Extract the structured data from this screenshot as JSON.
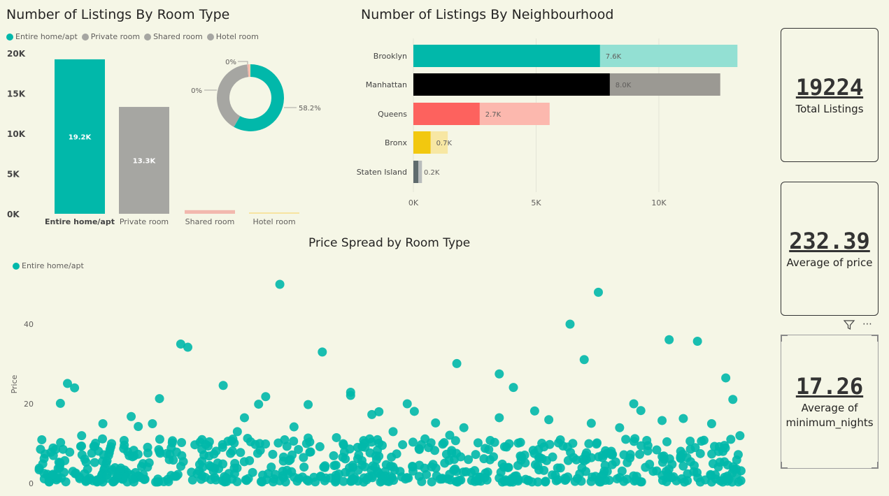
{
  "room_chart": {
    "title": "Number of Listings By Room Type",
    "legend": [
      {
        "name": "Entire home/apt",
        "color": "#01b8aa"
      },
      {
        "name": "Private room",
        "color": "#a6a6a2"
      },
      {
        "name": "Shared room",
        "color": "#a6a6a2"
      },
      {
        "name": "Hotel room",
        "color": "#a6a6a2"
      }
    ],
    "y_ticks": [
      "20K",
      "15K",
      "10K",
      "5K",
      "0K"
    ],
    "donut_labels": {
      "top": "0%",
      "left": "0%",
      "right": "58.2%"
    }
  },
  "neigh_chart": {
    "title": "Number of Listings By Neighbourhood",
    "x_ticks": [
      "0K",
      "5K",
      "10K"
    ]
  },
  "scatter_chart": {
    "title": "Price Spread by Room Type",
    "legend": [
      {
        "name": "Entire home/apt",
        "color": "#01b8aa"
      }
    ],
    "ylabel": "Price",
    "y_ticks": [
      "40",
      "20",
      "0"
    ]
  },
  "cards": [
    {
      "value": "19224",
      "label": "Total Listings"
    },
    {
      "value": "232.39",
      "label": "Average of price"
    },
    {
      "value": "17.26",
      "label_line1": "Average of",
      "label_line2": "minimum_nights"
    }
  ],
  "toolbar": {
    "filter_icon": "filter-icon",
    "more_icon": "more-options-icon",
    "more_label": "⋯"
  },
  "chart_data": [
    {
      "type": "bar",
      "categories": [
        "Entire home/apt",
        "Private room",
        "Shared room",
        "Hotel room"
      ],
      "values": [
        19224,
        13300,
        450,
        150
      ],
      "data_labels": [
        "19.2K",
        "13.3K",
        "",
        ""
      ],
      "colors": [
        "#01b8aa",
        "#a6a6a2",
        "#f2b8ae",
        "#f7e4a0"
      ],
      "ylim": [
        0,
        20000
      ],
      "legend": "top-left"
    },
    {
      "type": "pie",
      "categories": [
        "Entire home/apt",
        "Private room",
        "Shared room",
        "Hotel room"
      ],
      "values": [
        58.2,
        40.3,
        1.2,
        0.3
      ],
      "colors": [
        "#01b8aa",
        "#a6a6a2",
        "#f2b8ae",
        "#f7e4a0"
      ]
    },
    {
      "type": "bar",
      "orientation": "horizontal",
      "categories": [
        "Brooklyn",
        "Manhattan",
        "Queens",
        "Bronx",
        "Staten Island"
      ],
      "values": [
        7600,
        8000,
        2700,
        700,
        200
      ],
      "totals": [
        13200,
        12500,
        5550,
        1400,
        350
      ],
      "data_labels": [
        "7.6K",
        "8.0K",
        "2.7K",
        "0.7K",
        "0.2K"
      ],
      "colors": [
        "#01b8aa",
        "#000000",
        "#fd625e",
        "#f2c80f",
        "#5f6b6d"
      ],
      "light_colors": [
        "#93e0d3",
        "#9b9993",
        "#fcb8ae",
        "#f7e7a3",
        "#b8bcbc"
      ],
      "xlim": [
        0,
        14000
      ],
      "grid": true
    },
    {
      "type": "scatter",
      "ylabel": "Price",
      "ylim": [
        0,
        50
      ],
      "series": [
        {
          "name": "Entire home/apt",
          "color": "#01b8aa",
          "points": [
            [
              0.03,
              20.1
            ],
            [
              0.04,
              25.1
            ],
            [
              0.05,
              24.0
            ],
            [
              0.17,
              21.3
            ],
            [
              0.2,
              35.0
            ],
            [
              0.21,
              34.2
            ],
            [
              0.34,
              50.0
            ],
            [
              0.26,
              24.6
            ],
            [
              0.28,
              13.0
            ],
            [
              0.32,
              21.8
            ],
            [
              0.31,
              19.9
            ],
            [
              0.38,
              19.8
            ],
            [
              0.4,
              33.0
            ],
            [
              0.44,
              22.9
            ],
            [
              0.44,
              22.1
            ],
            [
              0.47,
              17.3
            ],
            [
              0.48,
              18.0
            ],
            [
              0.52,
              20.0
            ],
            [
              0.53,
              18.1
            ],
            [
              0.59,
              30.1
            ],
            [
              0.65,
              27.5
            ],
            [
              0.65,
              16.5
            ],
            [
              0.67,
              24.1
            ],
            [
              0.75,
              40.0
            ],
            [
              0.77,
              31.1
            ],
            [
              0.79,
              48.0
            ],
            [
              0.89,
              36.1
            ],
            [
              0.93,
              35.7
            ],
            [
              0.97,
              26.5
            ],
            [
              0.98,
              21.1
            ],
            [
              0.84,
              20.0
            ],
            [
              0.85,
              18.3
            ],
            [
              0.09,
              15.0
            ],
            [
              0.13,
              16.8
            ],
            [
              0.06,
              12.0
            ],
            [
              0.14,
              14.3
            ],
            [
              0.16,
              15.0
            ],
            [
              0.18,
              7.5
            ],
            [
              0.23,
              11.0
            ],
            [
              0.29,
              16.5
            ],
            [
              0.36,
              14.2
            ],
            [
              0.42,
              11.5
            ],
            [
              0.5,
              13.0
            ],
            [
              0.56,
              15.2
            ],
            [
              0.6,
              14.0
            ],
            [
              0.7,
              18.2
            ],
            [
              0.72,
              16.0
            ],
            [
              0.78,
              15.1
            ],
            [
              0.82,
              14.0
            ],
            [
              0.88,
              15.8
            ],
            [
              0.91,
              16.3
            ],
            [
              0.95,
              15.0
            ],
            [
              0.99,
              12.0
            ],
            [
              0.02,
              7.0
            ],
            [
              0.1,
              8.5
            ],
            [
              0.25,
              8.1
            ],
            [
              0.33,
              7.3
            ],
            [
              0.45,
              6.2
            ],
            [
              0.55,
              9.0
            ],
            [
              0.63,
              8.8
            ],
            [
              0.68,
              10.3
            ],
            [
              0.74,
              9.4
            ],
            [
              0.8,
              8.2
            ],
            [
              0.86,
              9.5
            ],
            [
              0.92,
              8.6
            ],
            [
              0.96,
              8.0
            ],
            [
              0.58,
              12.1
            ],
            [
              0.38,
              11.4
            ],
            [
              0.12,
              10.8
            ],
            [
              0.22,
              9.7
            ],
            [
              0.48,
              10.1
            ],
            [
              0.62,
              10.2
            ]
          ]
        }
      ]
    }
  ]
}
